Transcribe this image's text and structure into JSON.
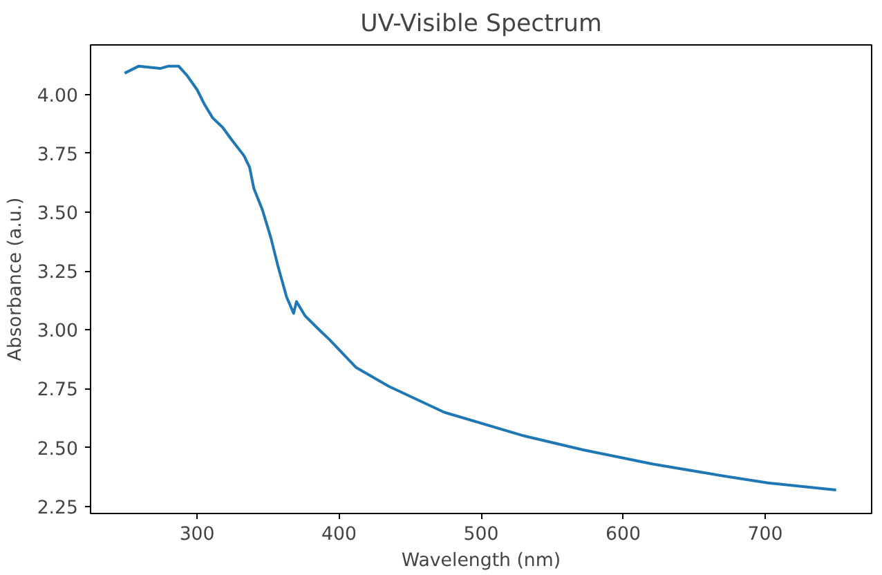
{
  "chart_data": {
    "type": "line",
    "title": "UV-Visible Spectrum",
    "xlabel": "Wavelength (nm)",
    "ylabel": "Absorbance (a.u.)",
    "x": [
      249,
      259,
      274,
      280,
      287,
      293,
      300,
      305,
      311,
      318,
      324,
      333,
      337,
      340,
      346,
      352,
      357,
      363,
      368,
      370,
      376,
      386,
      393,
      412,
      435,
      474,
      530,
      572,
      621,
      670,
      702,
      750
    ],
    "series": [
      {
        "color": "#1f77b4",
        "values": [
          4.09,
          4.12,
          4.11,
          4.12,
          4.12,
          4.08,
          4.02,
          3.96,
          3.9,
          3.86,
          3.81,
          3.74,
          3.69,
          3.6,
          3.51,
          3.39,
          3.27,
          3.14,
          3.07,
          3.12,
          3.06,
          3.0,
          2.96,
          2.84,
          2.76,
          2.65,
          2.55,
          2.49,
          2.43,
          2.38,
          2.35,
          2.32
        ]
      }
    ],
    "xlim": [
      225,
      775
    ],
    "ylim": [
      2.22,
      4.21
    ],
    "xticks": [
      300,
      400,
      500,
      600,
      700
    ],
    "yticks": [
      {
        "value": 2.25,
        "label": "2.25"
      },
      {
        "value": 2.5,
        "label": "2.50"
      },
      {
        "value": 2.75,
        "label": "2.75"
      },
      {
        "value": 3.0,
        "label": "3.00"
      },
      {
        "value": 3.25,
        "label": "3.25"
      },
      {
        "value": 3.5,
        "label": "3.50"
      },
      {
        "value": 3.75,
        "label": "3.75"
      },
      {
        "value": 4.0,
        "label": "4.00"
      }
    ],
    "grid": false,
    "marker": "none",
    "line_style": "solid"
  }
}
